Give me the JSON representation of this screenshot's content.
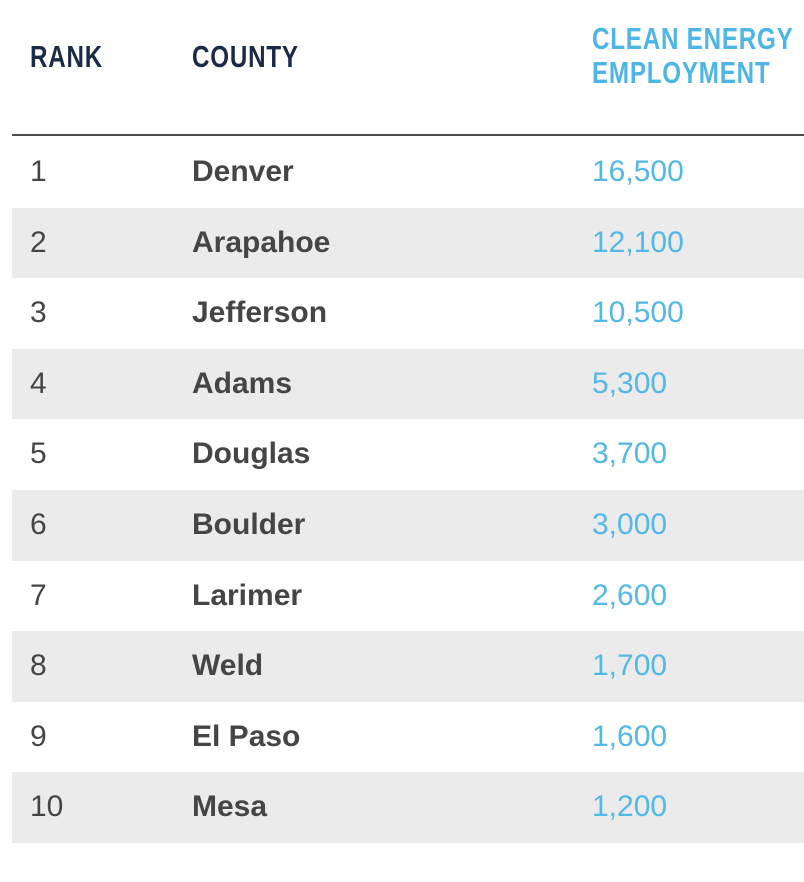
{
  "table": {
    "headers": [
      "RANK",
      "COUNTY",
      "CLEAN ENERGY EMPLOYMENT"
    ],
    "rows": [
      [
        "1",
        "Denver",
        "16,500"
      ],
      [
        "2",
        "Arapahoe",
        "12,100"
      ],
      [
        "3",
        "Jefferson",
        "10,500"
      ],
      [
        "4",
        "Adams",
        "5,300"
      ],
      [
        "5",
        "Douglas",
        "3,700"
      ],
      [
        "6",
        "Boulder",
        "3,000"
      ],
      [
        "7",
        "Larimer",
        "2,600"
      ],
      [
        "8",
        "Weld",
        "1,700"
      ],
      [
        "9",
        "El Paso",
        "1,600"
      ],
      [
        "10",
        "Mesa",
        "1,200"
      ]
    ]
  }
}
